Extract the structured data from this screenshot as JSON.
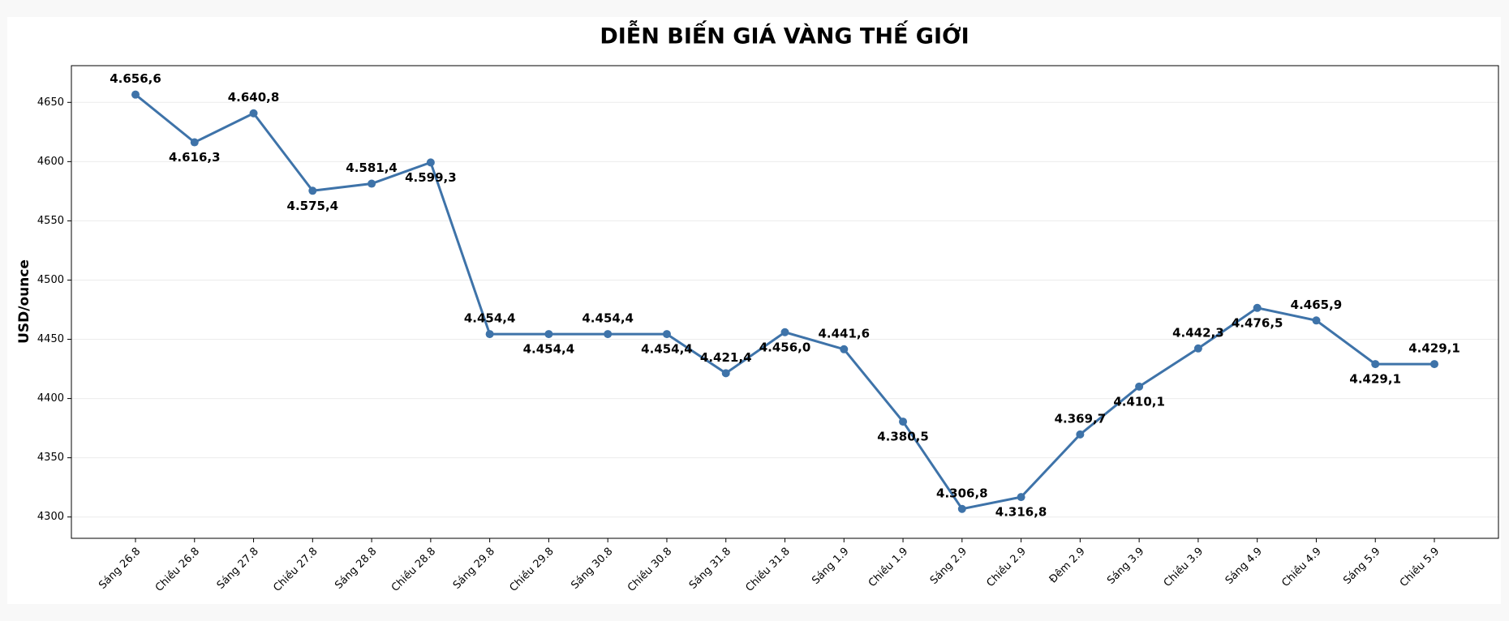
{
  "chart_data": {
    "type": "line",
    "title": "DIỄN BIẾN GIÁ VÀNG THẾ GIỚI",
    "y_label": "USD/ounce",
    "categories": [
      "Sáng 26.8",
      "Chiều 26.8",
      "Sáng 27.8",
      "Chiều 27.8",
      "Sáng 28.8",
      "Chiều 28.8",
      "Sáng 29.8",
      "Chiều 29.8",
      "Sáng 30.8",
      "Chiều 30.8",
      "Sáng 31.8",
      "Chiều 31.8",
      "Sáng 1.9",
      "Chiều 1.9",
      "Sáng 2.9",
      "Chiều 2.9",
      "Đêm 2.9",
      "Sáng 3.9",
      "Chiều 3.9",
      "Sáng 4.9",
      "Chiều 4.9",
      "Sáng 5.9",
      "Chiều 5.9"
    ],
    "series": [
      {
        "name": "Giá vàng",
        "color": "#3e73a9",
        "values": [
          4656.6,
          4616.3,
          4640.8,
          4575.4,
          4581.4,
          4599.3,
          4454.4,
          4454.4,
          4454.4,
          4454.4,
          4421.4,
          4456.0,
          4441.6,
          4380.5,
          4306.8,
          4316.8,
          4369.7,
          4410.1,
          4442.3,
          4476.5,
          4465.9,
          4429.1,
          4429.1
        ],
        "value_labels": [
          "4.656,6",
          "4.616,3",
          "4.640,8",
          "4.575,4",
          "4.581,4",
          "4.599,3",
          "4.454,4",
          "4.454,4",
          "4.454,4",
          "4.454,4",
          "4.421,4",
          "4.456,0",
          "4.441,6",
          "4.380,5",
          "4.306,8",
          "4.316,8",
          "4.369,7",
          "4.410,1",
          "4.442,3",
          "4.476,5",
          "4.465,9",
          "4.429,1",
          "4.429,1"
        ]
      }
    ],
    "ylim": [
      4282,
      4681
    ],
    "yticks": [
      4300,
      4350,
      4400,
      4450,
      4500,
      4550,
      4600,
      4650
    ],
    "grid": true
  }
}
